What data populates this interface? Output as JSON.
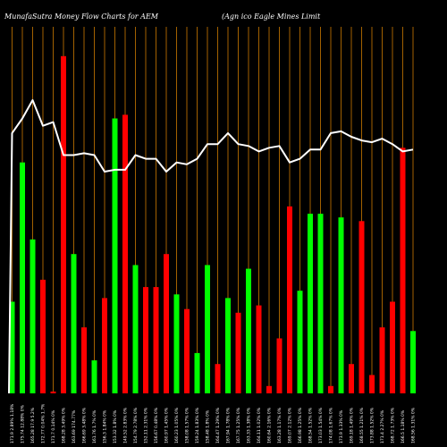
{
  "header": {
    "title_left": "MunafaSutra  Money Flow  Charts for AEM",
    "title_right": "(Agn                             ico   Eagle    Mines Limit"
  },
  "chart_data": {
    "type": "bar",
    "title": "MunafaSutra Money Flow Charts for AEM (Agnico Eagle Mines Limit",
    "ylim": [
      0,
      100
    ],
    "bar_colors": {
      "up": "#00ff00",
      "down": "#ff0000"
    },
    "line_color": "#ffffff",
    "grid_color": "#cc7a00",
    "background": "#000000",
    "categories": [
      "171.9 2.89% 1.18%",
      "175.74 12.88% 0%",
      "165.28 17.9 5.2%",
      "172.77 0.04% 1.7%",
      "171.7 0.14% 0%",
      "168.28 3.49% 0%",
      "163.69 174.77%",
      "166.69 3.48% 0%",
      "161.76 1.7% 0%",
      "156.3 1.84% 0%",
      "153.32 1.8% 0%",
      "149.52 2.83% 0%",
      "154.79 2.78% 0%",
      "152.11 2.31% 0%",
      "156.67 0.48% 0%",
      "160.97 1.45% 0%",
      "160.23 1.05% 0%",
      "158.08 1.57% 0%",
      "159.24 1.83% 0%",
      "158.48 1.8% 0%",
      "164.47 1.29% 0%",
      "167.94 1.78% 0%",
      "167.75 1.25% 0%",
      "163.33 1.38% 0%",
      "164.11 1.02% 0%",
      "160.64 2.16% 0%",
      "163.28 1.17% 0%",
      "169.07 2.12% 0%",
      "166.98 1.25% 0%",
      "168.54 1.52% 0%",
      "173.03 1.54% 0%",
      "174.08 1.67% 0%",
      "173.9 1.33% 0%",
      "169.18 1.49% 0%",
      "168.55 1.21% 0%",
      "173.88 1.52% 0%",
      "171.4 2.27% 0%",
      "168.72 1.73% 0%",
      "166.5 1.18% 0%",
      "168.56 1.31% 0%"
    ],
    "series": [
      {
        "type": "bar",
        "values": [
          25,
          63,
          42,
          31,
          0.5,
          92,
          38,
          18,
          9,
          26,
          75,
          76,
          35,
          29,
          29,
          38,
          27,
          23,
          11,
          35,
          8,
          26,
          22,
          34,
          24,
          2,
          15,
          51,
          28,
          49,
          49,
          2,
          48,
          8,
          47,
          5,
          18,
          25,
          67,
          17
        ],
        "direction": [
          "up",
          "up",
          "up",
          "down",
          "down",
          "down",
          "up",
          "down",
          "up",
          "down",
          "up",
          "down",
          "up",
          "down",
          "down",
          "down",
          "up",
          "down",
          "up",
          "up",
          "down",
          "up",
          "down",
          "up",
          "down",
          "down",
          "down",
          "down",
          "up",
          "up",
          "up",
          "down",
          "up",
          "down",
          "down",
          "down",
          "down",
          "down",
          "down",
          "up"
        ]
      },
      {
        "type": "line",
        "values": [
          71,
          75,
          80,
          73,
          74,
          65,
          65,
          65.5,
          65,
          60.5,
          61,
          61,
          65,
          64,
          64,
          60.5,
          63,
          62.5,
          64,
          68,
          68,
          71,
          68,
          67.5,
          66,
          67,
          67.5,
          63,
          64,
          66.5,
          66.5,
          71,
          71.5,
          70,
          69,
          68.5,
          69.5,
          68,
          66,
          66.5
        ]
      }
    ]
  }
}
